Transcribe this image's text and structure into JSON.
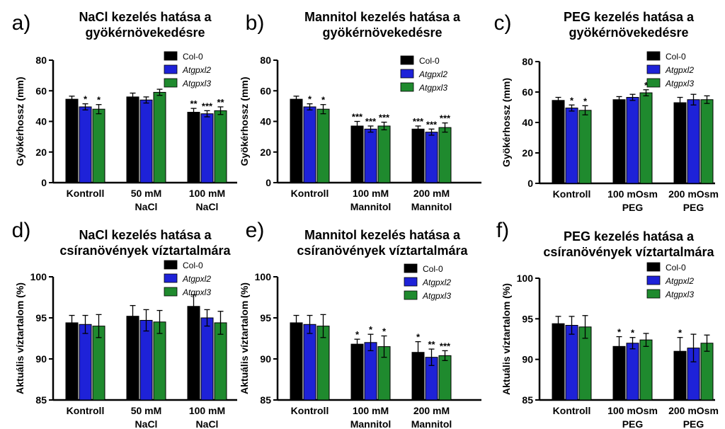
{
  "colors": {
    "col0": "#000000",
    "atgpxl2": "#1e22d8",
    "atgpxl3": "#1f8a2e"
  },
  "series_names": [
    "Col-0",
    "Atgpxl2",
    "Atgpxl3"
  ],
  "chart_data": [
    {
      "panel": "a)",
      "type": "bar",
      "title": [
        "NaCl kezelés hatása a",
        "gyökérnövekedésre"
      ],
      "ylabel": "Gyökérhossz (mm)",
      "ylim": [
        0,
        80
      ],
      "yticks": [
        "0",
        "20",
        "40",
        "60",
        "80"
      ],
      "categories": [
        [
          "Kontroll"
        ],
        [
          "50 mM",
          "NaCl"
        ],
        [
          "100 mM",
          "NaCl"
        ]
      ],
      "series": [
        {
          "name": "Col-0",
          "values": [
            54.5,
            56,
            46
          ],
          "errors": [
            2,
            2.5,
            2.5
          ],
          "sig": [
            "",
            "",
            "**"
          ]
        },
        {
          "name": "Atgpxl2",
          "values": [
            49.5,
            54,
            45
          ],
          "errors": [
            2,
            2,
            2
          ],
          "sig": [
            "*",
            "",
            "***"
          ]
        },
        {
          "name": "Atgpxl3",
          "values": [
            48,
            59,
            47
          ],
          "errors": [
            3,
            2,
            2.5
          ],
          "sig": [
            "*",
            "",
            "**"
          ]
        }
      ]
    },
    {
      "panel": "b)",
      "type": "bar",
      "title": [
        "Mannitol kezelés hatása a",
        "gyökérnövekedésre"
      ],
      "ylabel": "Gyökérhossz (mm)",
      "ylim": [
        0,
        80
      ],
      "yticks": [
        "0",
        "20",
        "40",
        "60",
        "80"
      ],
      "categories": [
        [
          "Kontroll"
        ],
        [
          "100 mM",
          "Mannitol"
        ],
        [
          "200 mM",
          "Mannitol"
        ]
      ],
      "series": [
        {
          "name": "Col-0",
          "values": [
            54.5,
            37,
            35
          ],
          "errors": [
            2,
            3,
            2
          ],
          "sig": [
            "",
            "***",
            "***"
          ]
        },
        {
          "name": "Atgpxl2",
          "values": [
            49.5,
            35,
            33
          ],
          "errors": [
            2,
            2,
            2
          ],
          "sig": [
            "*",
            "***",
            "***"
          ]
        },
        {
          "name": "Atgpxl3",
          "values": [
            48,
            37,
            36
          ],
          "errors": [
            3,
            2.5,
            3
          ],
          "sig": [
            "*",
            "***",
            "***"
          ]
        }
      ]
    },
    {
      "panel": "c)",
      "type": "bar",
      "title": [
        "PEG kezelés hatása a",
        "gyökérnövekedésre"
      ],
      "ylabel": "Gyökérhossz (mm)",
      "ylim": [
        0,
        80
      ],
      "yticks": [
        "0",
        "20",
        "40",
        "60",
        "80"
      ],
      "categories": [
        [
          "Kontroll"
        ],
        [
          "100 mOsm",
          "PEG"
        ],
        [
          "200 mOsm",
          "PEG"
        ]
      ],
      "series": [
        {
          "name": "Col-0",
          "values": [
            54.5,
            55,
            53
          ],
          "errors": [
            2,
            2,
            3.5
          ],
          "sig": [
            "",
            "",
            ""
          ]
        },
        {
          "name": "Atgpxl2",
          "values": [
            49.5,
            56.5,
            55
          ],
          "errors": [
            2,
            2,
            3.5
          ],
          "sig": [
            "*",
            "",
            ""
          ]
        },
        {
          "name": "Atgpxl3",
          "values": [
            48,
            59.5,
            55
          ],
          "errors": [
            3,
            2,
            2.5
          ],
          "sig": [
            "*",
            "*",
            ""
          ]
        }
      ]
    },
    {
      "panel": "d)",
      "type": "bar",
      "title": [
        "NaCl kezelés hatása a",
        "csíranövények víztartalmára"
      ],
      "ylabel": "Aktuális víztartalom (%)",
      "ylim": [
        85,
        100
      ],
      "yticks": [
        "85",
        "90",
        "95",
        "100"
      ],
      "categories": [
        [
          "Kontroll"
        ],
        [
          "50 mM",
          "NaCl"
        ],
        [
          "100 mM",
          "NaCl"
        ]
      ],
      "series": [
        {
          "name": "Col-0",
          "values": [
            94.4,
            95.2,
            96.4
          ],
          "errors": [
            0.9,
            1.3,
            1.4
          ],
          "sig": [
            "",
            "",
            ""
          ]
        },
        {
          "name": "Atgpxl2",
          "values": [
            94.2,
            94.7,
            95
          ],
          "errors": [
            1.1,
            1.3,
            1
          ],
          "sig": [
            "",
            "",
            ""
          ]
        },
        {
          "name": "Atgpxl3",
          "values": [
            94,
            94.5,
            94.4
          ],
          "errors": [
            1.4,
            1.4,
            1.4
          ],
          "sig": [
            "",
            "",
            ""
          ]
        }
      ]
    },
    {
      "panel": "e)",
      "type": "bar",
      "title": [
        "Mannitol kezelés hatása a",
        "csíranövények víztartalmára"
      ],
      "ylabel": "Aktuális víztartalom (%)",
      "ylim": [
        85,
        100
      ],
      "yticks": [
        "85",
        "90",
        "95",
        "100"
      ],
      "categories": [
        [
          "Kontroll"
        ],
        [
          "100 mM",
          "Mannitol"
        ],
        [
          "200 mM",
          "Mannitol"
        ]
      ],
      "series": [
        {
          "name": "Col-0",
          "values": [
            94.4,
            91.8,
            90.8
          ],
          "errors": [
            0.9,
            0.6,
            1.3
          ],
          "sig": [
            "",
            "*",
            "*"
          ]
        },
        {
          "name": "Atgpxl2",
          "values": [
            94.2,
            92,
            90.2
          ],
          "errors": [
            1.1,
            1,
            1
          ],
          "sig": [
            "",
            "*",
            "**"
          ]
        },
        {
          "name": "Atgpxl3",
          "values": [
            94,
            91.5,
            90.4
          ],
          "errors": [
            1.4,
            1.3,
            0.6
          ],
          "sig": [
            "",
            "*",
            "***"
          ]
        }
      ]
    },
    {
      "panel": "f)",
      "type": "bar",
      "title": [
        "PEG kezelés hatása a",
        "csíranövények víztartalmára"
      ],
      "ylabel": "Aktuális víztartalom (%)",
      "ylim": [
        85,
        100
      ],
      "yticks": [
        "85",
        "90",
        "95",
        "100"
      ],
      "categories": [
        [
          "Kontroll"
        ],
        [
          "100 mOsm",
          "PEG"
        ],
        [
          "200 mOsm",
          "PEG"
        ]
      ],
      "series": [
        {
          "name": "Col-0",
          "values": [
            94.4,
            91.6,
            91
          ],
          "errors": [
            0.9,
            1.2,
            1.7
          ],
          "sig": [
            "",
            "*",
            "*"
          ]
        },
        {
          "name": "Atgpxl2",
          "values": [
            94.2,
            92,
            91.4
          ],
          "errors": [
            1.1,
            0.7,
            1.7
          ],
          "sig": [
            "",
            "*",
            ""
          ]
        },
        {
          "name": "Atgpxl3",
          "values": [
            94,
            92.4,
            92
          ],
          "errors": [
            1.4,
            0.8,
            1
          ],
          "sig": [
            "",
            "",
            ""
          ]
        }
      ]
    }
  ]
}
